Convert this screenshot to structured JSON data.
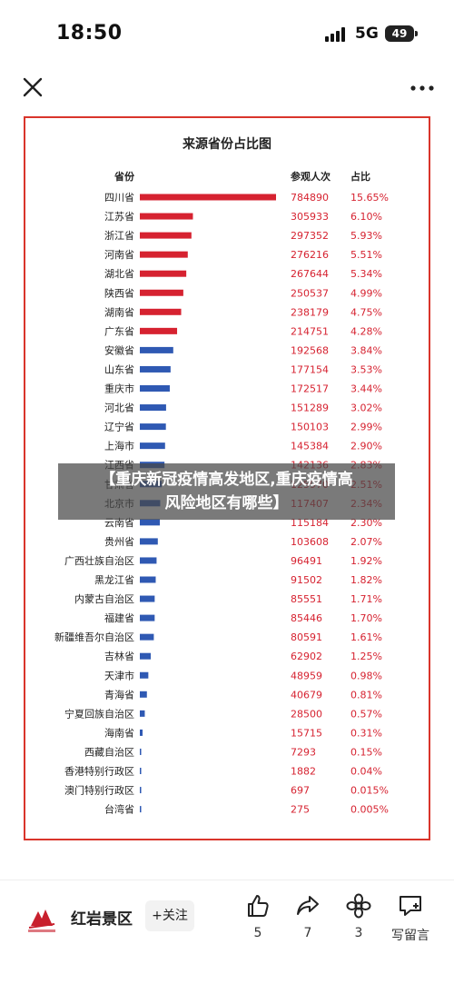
{
  "status_bar": {
    "time": "18:50",
    "network": "5G",
    "battery": "49"
  },
  "nav": {
    "close_icon": "close-icon",
    "more_icon": "more-icon"
  },
  "caption": {
    "line1": "【重庆新冠疫情高发地区,重庆疫情高",
    "line2": "风险地区有哪些】"
  },
  "chart_data": {
    "type": "table",
    "title": "来源省份占比图",
    "columns": [
      "省份",
      "参观人次",
      "占比"
    ],
    "rows": [
      {
        "province": "四川省",
        "visits": "784890",
        "share": "15.65%",
        "value": 784890,
        "color": "#d62230"
      },
      {
        "province": "江苏省",
        "visits": "305933",
        "share": "6.10%",
        "value": 305933,
        "color": "#d62230"
      },
      {
        "province": "浙江省",
        "visits": "297352",
        "share": "5.93%",
        "value": 297352,
        "color": "#d62230"
      },
      {
        "province": "河南省",
        "visits": "276216",
        "share": "5.51%",
        "value": 276216,
        "color": "#d62230"
      },
      {
        "province": "湖北省",
        "visits": "267644",
        "share": "5.34%",
        "value": 267644,
        "color": "#d62230"
      },
      {
        "province": "陕西省",
        "visits": "250537",
        "share": "4.99%",
        "value": 250537,
        "color": "#d62230"
      },
      {
        "province": "湖南省",
        "visits": "238179",
        "share": "4.75%",
        "value": 238179,
        "color": "#d62230"
      },
      {
        "province": "广东省",
        "visits": "214751",
        "share": "4.28%",
        "value": 214751,
        "color": "#d62230"
      },
      {
        "province": "安徽省",
        "visits": "192568",
        "share": "3.84%",
        "value": 192568,
        "color": "#2f59b3"
      },
      {
        "province": "山东省",
        "visits": "177154",
        "share": "3.53%",
        "value": 177154,
        "color": "#2f59b3"
      },
      {
        "province": "重庆市",
        "visits": "172517",
        "share": "3.44%",
        "value": 172517,
        "color": "#2f59b3"
      },
      {
        "province": "河北省",
        "visits": "151289",
        "share": "3.02%",
        "value": 151289,
        "color": "#2f59b3"
      },
      {
        "province": "辽宁省",
        "visits": "150103",
        "share": "2.99%",
        "value": 150103,
        "color": "#2f59b3"
      },
      {
        "province": "上海市",
        "visits": "145384",
        "share": "2.90%",
        "value": 145384,
        "color": "#2f59b3"
      },
      {
        "province": "江西省",
        "visits": "142136",
        "share": "2.83%",
        "value": 142136,
        "color": "#2f59b3"
      },
      {
        "province": "甘肃省",
        "visits": "125970",
        "share": "2.51%",
        "value": 125970,
        "color": "#2f59b3"
      },
      {
        "province": "北京市",
        "visits": "117407",
        "share": "2.34%",
        "value": 117407,
        "color": "#2f59b3"
      },
      {
        "province": "云南省",
        "visits": "115184",
        "share": "2.30%",
        "value": 115184,
        "color": "#2f59b3"
      },
      {
        "province": "贵州省",
        "visits": "103608",
        "share": "2.07%",
        "value": 103608,
        "color": "#2f59b3"
      },
      {
        "province": "广西壮族自治区",
        "visits": "96491",
        "share": "1.92%",
        "value": 96491,
        "color": "#2f59b3"
      },
      {
        "province": "黑龙江省",
        "visits": "91502",
        "share": "1.82%",
        "value": 91502,
        "color": "#2f59b3"
      },
      {
        "province": "内蒙古自治区",
        "visits": "85551",
        "share": "1.71%",
        "value": 85551,
        "color": "#2f59b3"
      },
      {
        "province": "福建省",
        "visits": "85446",
        "share": "1.70%",
        "value": 85446,
        "color": "#2f59b3"
      },
      {
        "province": "新疆维吾尔自治区",
        "visits": "80591",
        "share": "1.61%",
        "value": 80591,
        "color": "#2f59b3"
      },
      {
        "province": "吉林省",
        "visits": "62902",
        "share": "1.25%",
        "value": 62902,
        "color": "#2f59b3"
      },
      {
        "province": "天津市",
        "visits": "48959",
        "share": "0.98%",
        "value": 48959,
        "color": "#2f59b3"
      },
      {
        "province": "青海省",
        "visits": "40679",
        "share": "0.81%",
        "value": 40679,
        "color": "#2f59b3"
      },
      {
        "province": "宁夏回族自治区",
        "visits": "28500",
        "share": "0.57%",
        "value": 28500,
        "color": "#2f59b3"
      },
      {
        "province": "海南省",
        "visits": "15715",
        "share": "0.31%",
        "value": 15715,
        "color": "#2f59b3"
      },
      {
        "province": "西藏自治区",
        "visits": "7293",
        "share": "0.15%",
        "value": 7293,
        "color": "#2f59b3"
      },
      {
        "province": "香港特别行政区",
        "visits": "1882",
        "share": "0.04%",
        "value": 1882,
        "color": "#2f59b3"
      },
      {
        "province": "澳门特别行政区",
        "visits": "697",
        "share": "0.015%",
        "value": 697,
        "color": "#2f59b3"
      },
      {
        "province": "台湾省",
        "visits": "275",
        "share": "0.005%",
        "value": 275,
        "color": "#2f59b3"
      }
    ],
    "max_value": 784890,
    "share_color": "#d62230"
  },
  "bottom_bar": {
    "source_name": "红岩景区",
    "follow_label": "+关注",
    "like_count": "5",
    "share_count": "7",
    "favorite_count": "3",
    "comment_label": "写留言"
  }
}
